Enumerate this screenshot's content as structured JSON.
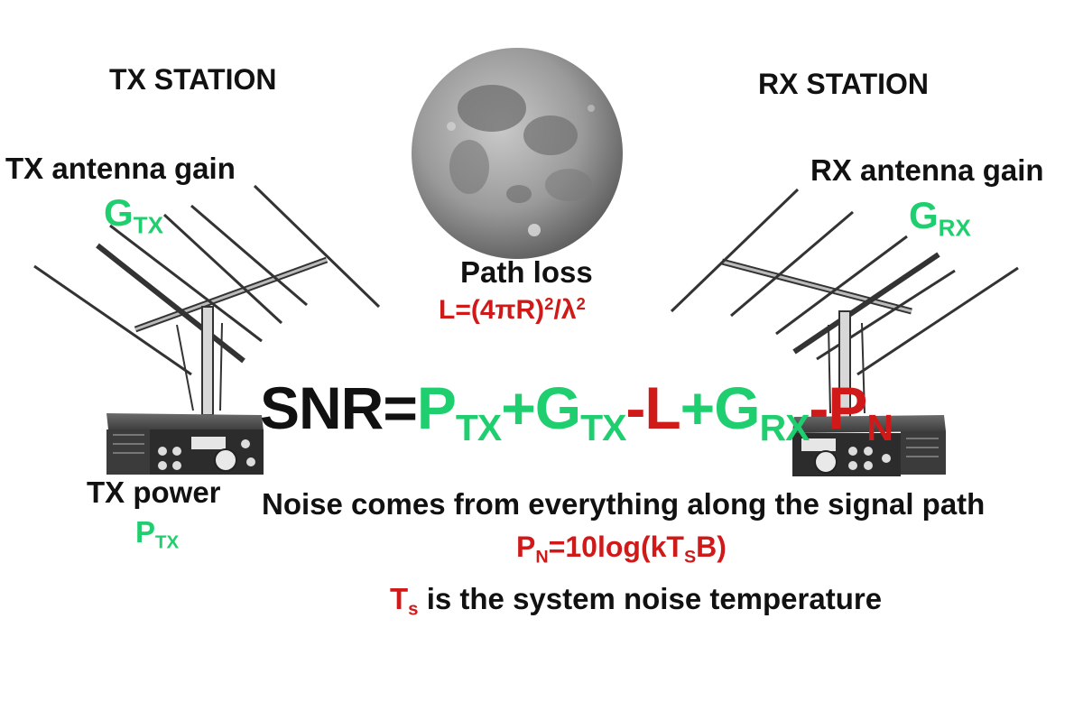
{
  "tx_station": {
    "title": "TX STATION",
    "gain_label": "TX antenna gain",
    "gain_symbol": "G",
    "gain_sub": "TX",
    "power_label": "TX power",
    "power_symbol": "P",
    "power_sub": "TX"
  },
  "rx_station": {
    "title": "RX STATION",
    "gain_label": "RX antenna gain",
    "gain_symbol": "G",
    "gain_sub": "RX"
  },
  "path": {
    "title": "Path loss",
    "formula_a": "L=(4πR)",
    "sup1": "2",
    "formula_b": "/λ",
    "sup2": "2"
  },
  "snr_equation": {
    "lhs": "SNR=",
    "p": "P",
    "p_sub": "TX",
    "plus1": "+",
    "g1": "G",
    "g1_sub": "TX",
    "minus_l": "-L",
    "plus2": "+",
    "g2": "G",
    "g2_sub": "RX",
    "minus_p": "-P",
    "pn_sub": "N"
  },
  "noise": {
    "line": "Noise comes from everything along the signal path",
    "formula_a": "P",
    "formula_a_sub": "N",
    "formula_b": "=10log(kT",
    "formula_b_sub": "S",
    "formula_c": "B)",
    "temp_symbol": "T",
    "temp_sub": "s",
    "temp_text": " is the system noise temperature"
  },
  "colors": {
    "green": "#1fce6e",
    "red": "#d01a1a",
    "black": "#111111"
  }
}
